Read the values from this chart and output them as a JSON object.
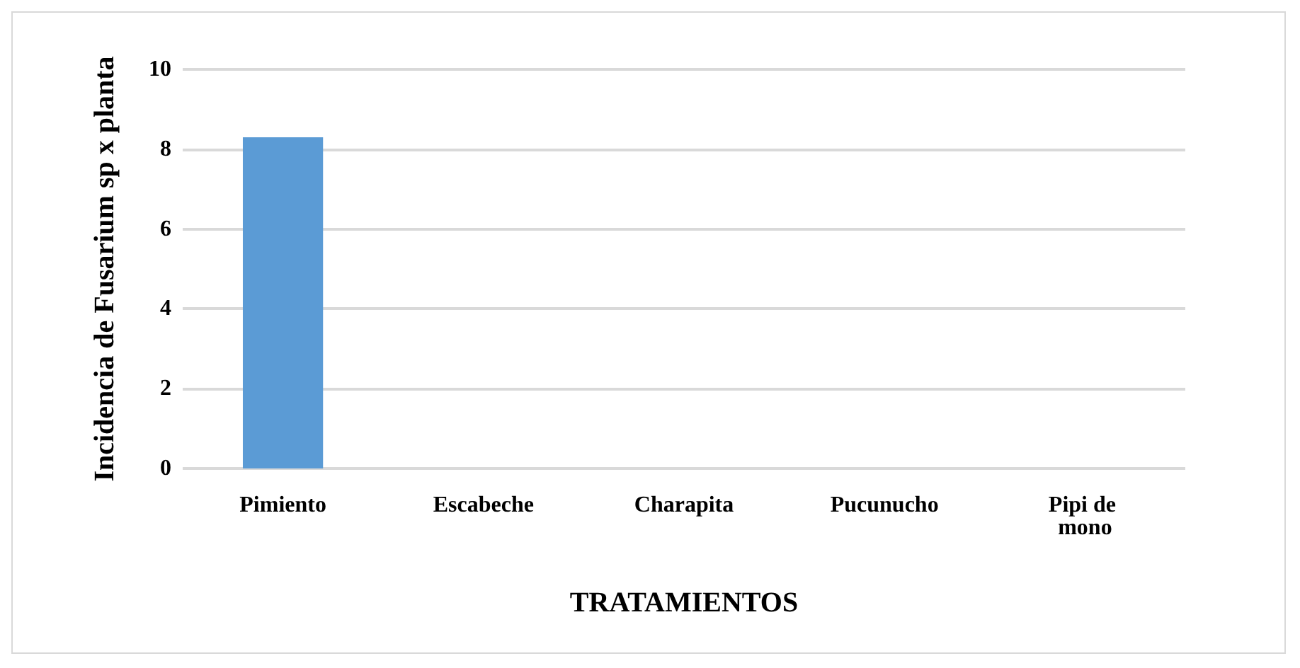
{
  "chart_data": {
    "type": "bar",
    "xlabel": "TRATAMIENTOS",
    "ylabel": "Incidencia de Fusarium sp x planta",
    "categories": [
      "Pimiento",
      "Escabeche",
      "Charapita",
      "Pucunucho",
      "Pipi de mono"
    ],
    "values": [
      8.3,
      0,
      0,
      0,
      0
    ],
    "color": "#5b9bd5",
    "ylim": [
      0,
      10
    ],
    "yticks": [
      0,
      2,
      4,
      6,
      8,
      10
    ],
    "grid": "y"
  }
}
